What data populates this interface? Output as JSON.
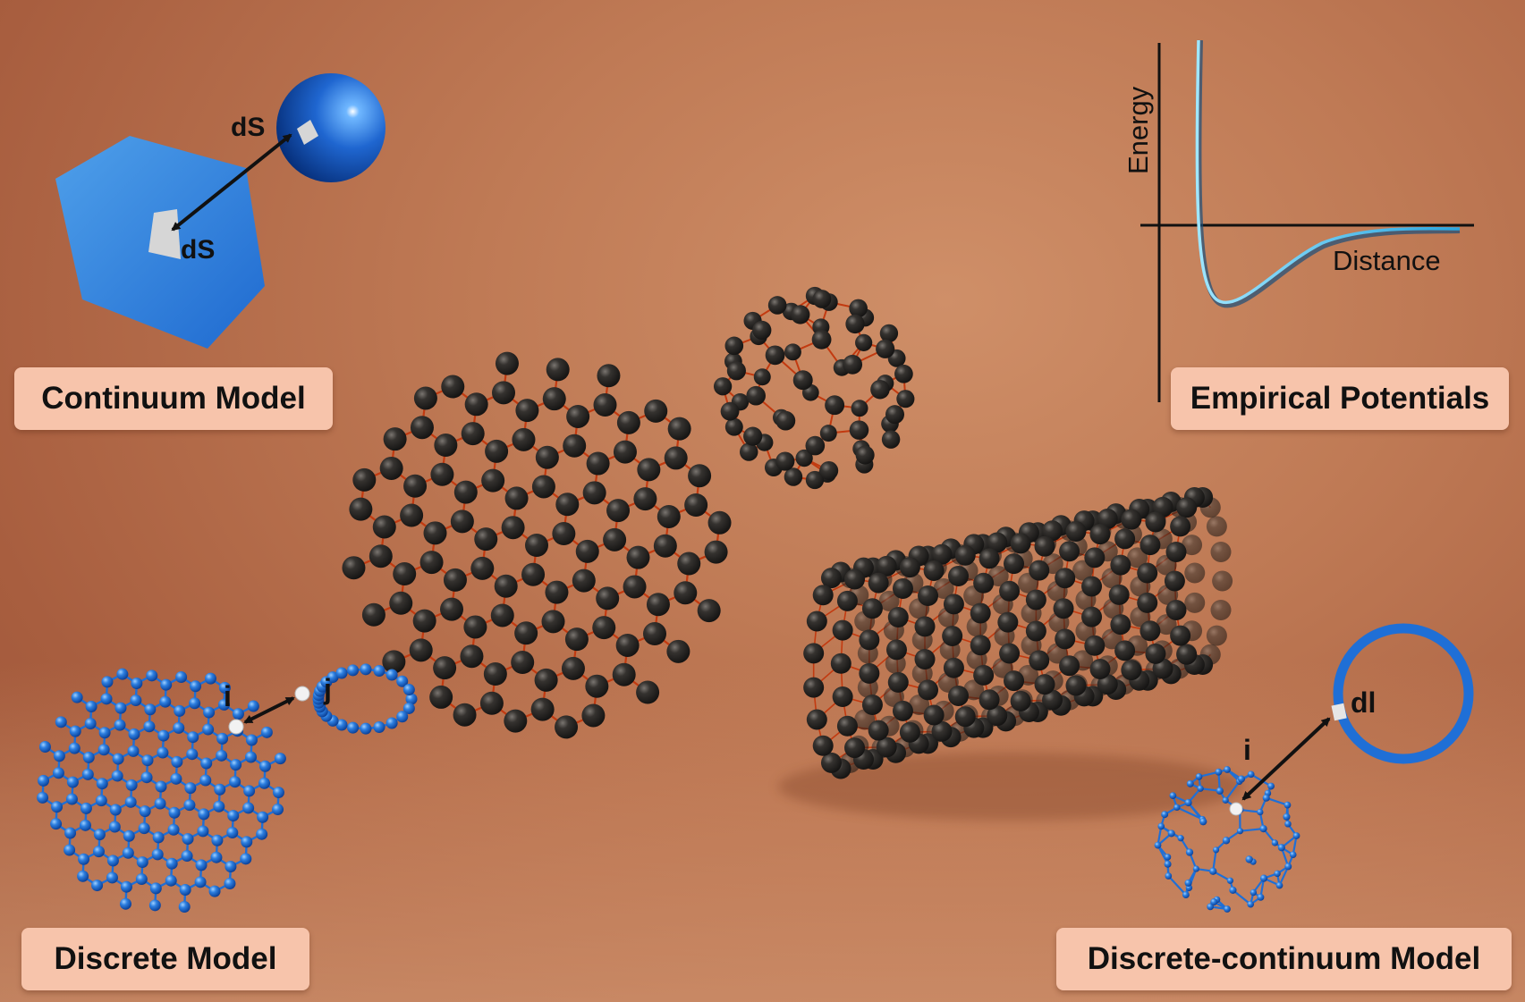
{
  "labels": {
    "continuum": "Continuum Model",
    "empirical": "Empirical Potentials",
    "discrete": "Discrete Model",
    "discrete_continuum": "Discrete-continuum Model"
  },
  "continuum": {
    "ds_sphere": "dS",
    "ds_plane": "dS"
  },
  "potential": {
    "ylabel": "Energy",
    "xlabel": "Distance"
  },
  "discrete": {
    "atom_i": "i",
    "atom_j": "j"
  },
  "discrete_continuum": {
    "atom_i": "i",
    "element_dl": "dl"
  },
  "colors": {
    "background": "#bf7a55",
    "label_box": "#f7c4ab",
    "carbon_atom": "#2d2b29",
    "bond": "#c23a10",
    "model_blue": "#1f6fd6",
    "curve": "#39b5e6"
  }
}
